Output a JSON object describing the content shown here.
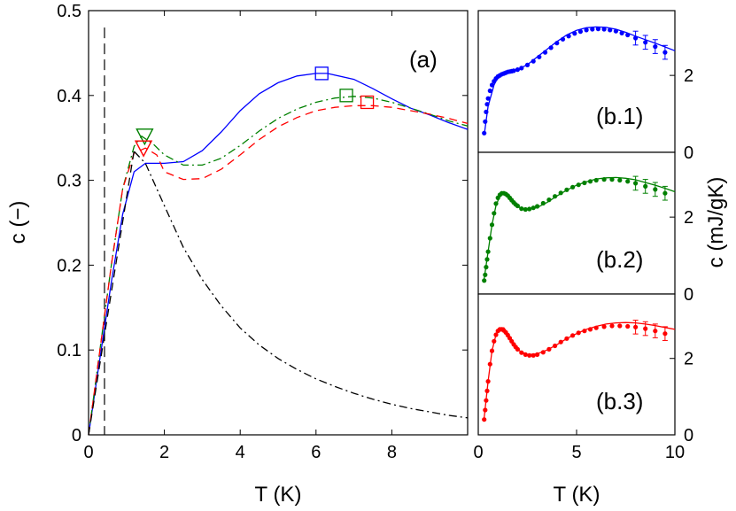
{
  "chart_data": [
    {
      "type": "line",
      "panel_label": "(a)",
      "xlabel": "T (K)",
      "ylabel": "c (−)",
      "xlim": [
        0,
        10
      ],
      "ylim": [
        0,
        0.5
      ],
      "xticks": [
        0,
        2,
        4,
        6,
        8
      ],
      "yticks": [
        0,
        0.1,
        0.2,
        0.3,
        0.4,
        0.5
      ],
      "ytick_labels": [
        "0",
        "0.1",
        "0.2",
        "0.3",
        "0.4",
        "0.5"
      ],
      "grid": false,
      "legend": "none",
      "vline": {
        "x": 0.42,
        "color": "#000000",
        "style": "dashed"
      },
      "series": [
        {
          "color": "#0000ff",
          "style": "solid",
          "x": [
            0,
            0.3,
            0.6,
            0.9,
            1.2,
            1.5,
            2.0,
            2.5,
            3.0,
            3.5,
            4.0,
            4.5,
            5.0,
            5.5,
            6.0,
            6.3,
            7.0,
            7.5,
            8.0,
            8.5,
            9.0,
            9.5,
            10.0
          ],
          "y": [
            0,
            0.09,
            0.18,
            0.26,
            0.31,
            0.32,
            0.32,
            0.322,
            0.335,
            0.357,
            0.382,
            0.402,
            0.415,
            0.423,
            0.426,
            0.426,
            0.419,
            0.408,
            0.396,
            0.385,
            0.377,
            0.368,
            0.36
          ],
          "markers": [
            {
              "x": 6.15,
              "y": 0.426,
              "shape": "square"
            }
          ]
        },
        {
          "color": "#008000",
          "style": "dashdot",
          "x": [
            0,
            0.3,
            0.6,
            0.9,
            1.2,
            1.4,
            1.7,
            2.0,
            2.5,
            3.0,
            3.5,
            4.0,
            4.5,
            5.0,
            5.5,
            6.0,
            6.5,
            7.0,
            7.5,
            8.0,
            8.5,
            9.0,
            9.5,
            10.0
          ],
          "y": [
            0,
            0.1,
            0.2,
            0.29,
            0.34,
            0.352,
            0.343,
            0.33,
            0.318,
            0.318,
            0.326,
            0.341,
            0.358,
            0.373,
            0.384,
            0.392,
            0.397,
            0.399,
            0.397,
            0.392,
            0.385,
            0.378,
            0.37,
            0.364
          ],
          "markers": [
            {
              "x": 6.8,
              "y": 0.4,
              "shape": "square"
            },
            {
              "x": 1.48,
              "y": 0.352,
              "shape": "triangle-down"
            }
          ]
        },
        {
          "color": "#ff0000",
          "style": "dashed",
          "x": [
            0,
            0.3,
            0.6,
            0.9,
            1.2,
            1.5,
            1.8,
            2.0,
            2.5,
            3.0,
            3.5,
            4.0,
            4.5,
            5.0,
            5.5,
            6.0,
            6.5,
            7.0,
            7.5,
            8.0,
            8.5,
            9.0,
            9.5,
            10.0
          ],
          "y": [
            0,
            0.1,
            0.2,
            0.29,
            0.332,
            0.338,
            0.33,
            0.31,
            0.301,
            0.302,
            0.313,
            0.33,
            0.348,
            0.363,
            0.374,
            0.382,
            0.386,
            0.388,
            0.388,
            0.386,
            0.382,
            0.378,
            0.373,
            0.367
          ],
          "markers": [
            {
              "x": 7.35,
              "y": 0.392,
              "shape": "square"
            },
            {
              "x": 1.45,
              "y": 0.338,
              "shape": "triangle-down"
            }
          ]
        },
        {
          "color": "#000000",
          "style": "dashdot",
          "x": [
            1.2,
            1.5,
            2.0,
            2.5,
            3.0,
            3.5,
            4.0,
            4.5,
            5.0,
            5.5,
            6.0,
            6.5,
            7.0,
            7.5,
            8.0,
            8.5,
            9.0,
            9.5,
            10.0
          ],
          "y": [
            0.334,
            0.32,
            0.27,
            0.221,
            0.183,
            0.152,
            0.126,
            0.106,
            0.09,
            0.077,
            0.066,
            0.057,
            0.049,
            0.042,
            0.036,
            0.031,
            0.027,
            0.023,
            0.02
          ],
          "markers": []
        },
        {
          "color": "#000000",
          "style": "dashed",
          "x": [
            0,
            0.5,
            1.2
          ],
          "y": [
            0,
            0.14,
            0.335
          ],
          "markers": []
        }
      ]
    },
    {
      "type": "scatter",
      "panel_label": "(b.1)",
      "xlim": [
        0,
        10
      ],
      "ylim": [
        0,
        3.5
      ],
      "yticks": [
        0,
        2
      ],
      "color": "#0000ff",
      "fit": {
        "x": [
          0.3,
          0.5,
          0.8,
          1.0,
          1.3,
          1.6,
          2.0,
          2.5,
          3.0,
          3.5,
          4.0,
          4.5,
          5.0,
          5.5,
          6.0,
          6.5,
          7.0,
          7.5,
          8.0,
          8.5,
          9.0,
          9.5,
          10.0
        ],
        "y": [
          0.45,
          1.2,
          1.75,
          1.95,
          2.05,
          2.1,
          2.15,
          2.28,
          2.48,
          2.68,
          2.88,
          3.05,
          3.17,
          3.24,
          3.26,
          3.25,
          3.2,
          3.12,
          3.02,
          2.93,
          2.84,
          2.74,
          2.64
        ]
      },
      "points": {
        "x": [
          0.3,
          0.35,
          0.4,
          0.45,
          0.5,
          0.6,
          0.7,
          0.8,
          0.9,
          1.0,
          1.1,
          1.2,
          1.3,
          1.4,
          1.5,
          1.6,
          1.7,
          1.8,
          2.0,
          2.2,
          2.5,
          2.8,
          3.1,
          3.4,
          3.7,
          4.0,
          4.3,
          4.6,
          4.9,
          5.2,
          5.5,
          5.8,
          6.1,
          6.4,
          6.7,
          7.0,
          7.3,
          7.6,
          8.0,
          8.5,
          9.0,
          9.5
        ],
        "y": [
          0.5,
          0.8,
          1.05,
          1.25,
          1.4,
          1.6,
          1.75,
          1.85,
          1.92,
          1.97,
          2.0,
          2.03,
          2.05,
          2.07,
          2.09,
          2.1,
          2.11,
          2.12,
          2.15,
          2.19,
          2.27,
          2.37,
          2.48,
          2.6,
          2.72,
          2.84,
          2.94,
          3.02,
          3.09,
          3.14,
          3.18,
          3.2,
          3.21,
          3.2,
          3.18,
          3.15,
          3.1,
          3.05,
          2.97,
          2.86,
          2.75,
          2.6
        ]
      },
      "error_bars_x": [
        8.0,
        8.5,
        9.0,
        9.5
      ],
      "error_bar_size": 0.18
    },
    {
      "type": "scatter",
      "panel_label": "(b.2)",
      "xlim": [
        0,
        10
      ],
      "ylim": [
        0,
        3.5
      ],
      "yticks": [
        0,
        2
      ],
      "color": "#008000",
      "fit": {
        "x": [
          0.3,
          0.5,
          0.7,
          0.9,
          1.1,
          1.3,
          1.5,
          1.8,
          2.1,
          2.5,
          3.0,
          3.5,
          4.0,
          4.5,
          5.0,
          5.5,
          6.0,
          6.5,
          7.0,
          7.5,
          8.0,
          8.5,
          9.0,
          9.5,
          10.0
        ],
        "y": [
          0.4,
          1.1,
          1.8,
          2.3,
          2.55,
          2.63,
          2.58,
          2.4,
          2.25,
          2.2,
          2.25,
          2.38,
          2.55,
          2.7,
          2.83,
          2.92,
          2.99,
          3.02,
          3.03,
          3.01,
          2.97,
          2.9,
          2.83,
          2.75,
          2.66
        ]
      },
      "points": {
        "x": [
          0.3,
          0.35,
          0.4,
          0.45,
          0.5,
          0.6,
          0.7,
          0.8,
          0.9,
          1.0,
          1.1,
          1.2,
          1.3,
          1.4,
          1.5,
          1.6,
          1.7,
          1.8,
          1.9,
          2.0,
          2.2,
          2.4,
          2.6,
          2.8,
          3.0,
          3.3,
          3.6,
          3.9,
          4.2,
          4.5,
          4.8,
          5.1,
          5.4,
          5.7,
          6.0,
          6.4,
          6.8,
          7.2,
          7.6,
          8.0,
          8.5,
          9.0,
          9.5
        ],
        "y": [
          0.35,
          0.5,
          0.7,
          0.9,
          1.1,
          1.45,
          1.8,
          2.1,
          2.35,
          2.5,
          2.58,
          2.62,
          2.62,
          2.6,
          2.56,
          2.5,
          2.44,
          2.38,
          2.33,
          2.29,
          2.22,
          2.2,
          2.21,
          2.24,
          2.28,
          2.36,
          2.45,
          2.54,
          2.63,
          2.71,
          2.78,
          2.84,
          2.89,
          2.93,
          2.96,
          2.98,
          2.98,
          2.96,
          2.93,
          2.88,
          2.8,
          2.72,
          2.62
        ]
      },
      "error_bars_x": [
        8.0,
        8.5,
        9.0,
        9.5
      ],
      "error_bar_size": 0.18
    },
    {
      "type": "scatter",
      "panel_label": "(b.3)",
      "xlim": [
        0,
        10
      ],
      "ylim": [
        0,
        3.5
      ],
      "yticks": [
        0,
        2
      ],
      "color": "#ff0000",
      "fit": {
        "x": [
          0.3,
          0.5,
          0.7,
          0.9,
          1.1,
          1.3,
          1.5,
          1.8,
          2.1,
          2.5,
          3.0,
          3.5,
          4.0,
          4.5,
          5.0,
          5.5,
          6.0,
          6.5,
          7.0,
          7.5,
          8.0,
          8.5,
          9.0,
          9.5,
          10.0
        ],
        "y": [
          0.45,
          1.4,
          2.2,
          2.62,
          2.8,
          2.8,
          2.65,
          2.4,
          2.2,
          2.1,
          2.12,
          2.22,
          2.36,
          2.52,
          2.65,
          2.76,
          2.84,
          2.9,
          2.93,
          2.94,
          2.93,
          2.9,
          2.86,
          2.81,
          2.76
        ]
      },
      "points": {
        "x": [
          0.3,
          0.35,
          0.4,
          0.45,
          0.5,
          0.6,
          0.7,
          0.8,
          0.9,
          1.0,
          1.1,
          1.2,
          1.3,
          1.4,
          1.5,
          1.6,
          1.7,
          1.8,
          1.9,
          2.0,
          2.2,
          2.4,
          2.6,
          2.8,
          3.0,
          3.3,
          3.6,
          3.9,
          4.2,
          4.5,
          4.8,
          5.1,
          5.4,
          5.7,
          6.0,
          6.4,
          6.8,
          7.2,
          7.6,
          8.0,
          8.5,
          9.0,
          9.5
        ],
        "y": [
          0.4,
          0.65,
          0.9,
          1.15,
          1.4,
          1.85,
          2.2,
          2.45,
          2.62,
          2.72,
          2.76,
          2.76,
          2.73,
          2.68,
          2.61,
          2.53,
          2.45,
          2.37,
          2.3,
          2.24,
          2.15,
          2.1,
          2.08,
          2.08,
          2.1,
          2.16,
          2.24,
          2.33,
          2.43,
          2.52,
          2.6,
          2.67,
          2.72,
          2.76,
          2.8,
          2.83,
          2.85,
          2.85,
          2.84,
          2.82,
          2.78,
          2.72,
          2.65
        ]
      },
      "error_bars_x": [
        8.0,
        8.5,
        9.0,
        9.5
      ],
      "error_bar_size": 0.18
    }
  ],
  "right_axis": {
    "xlabel": "T (K)",
    "ylabel": "c (mJ/gK)",
    "xticks": [
      0,
      5,
      10
    ]
  }
}
